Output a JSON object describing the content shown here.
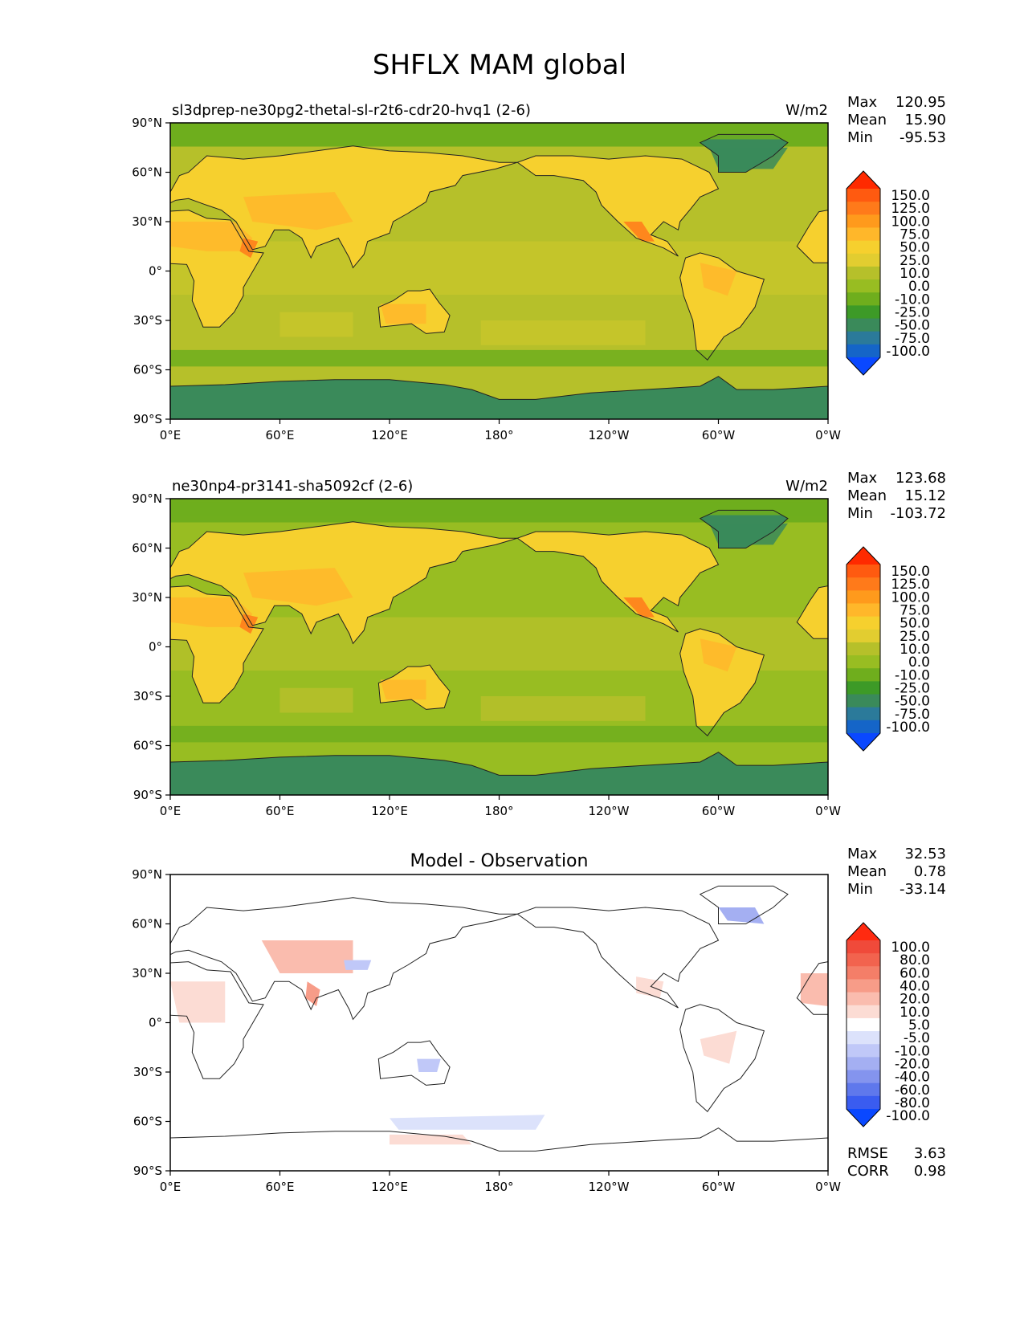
{
  "figure": {
    "title": "SHFLX MAM global"
  },
  "chart_data": [
    {
      "type": "heatmap",
      "map": "global lon-lat contour map",
      "title": "sl3dprep-ne30pg2-thetal-sl-r2t6-cdr20-hvq1 (2-6)",
      "units": "W/m2",
      "stats": {
        "max": "120.95",
        "mean": "15.90",
        "min": "-95.53"
      },
      "stat_labels": {
        "max": "Max",
        "mean": "Mean",
        "min": "Min"
      },
      "xticks": [
        "0°E",
        "60°E",
        "120°E",
        "180°",
        "120°W",
        "60°W",
        "0°W"
      ],
      "yticks": [
        "90°N",
        "60°N",
        "30°N",
        "0°",
        "30°S",
        "60°S",
        "90°S"
      ],
      "xlim": [
        0,
        360
      ],
      "ylim": [
        -90,
        90
      ],
      "colorbar": {
        "levels": [
          "150.0",
          "125.0",
          "100.0",
          "75.0",
          "50.0",
          "25.0",
          "10.0",
          "0.0",
          "-10.0",
          "-25.0",
          "-50.0",
          "-75.0",
          "-100.0"
        ],
        "colors": [
          "#ff2a00",
          "#ff5a10",
          "#ff7a1a",
          "#ff9a1c",
          "#ffb72a",
          "#f6d02e",
          "#e2cd30",
          "#b6c02a",
          "#98bd22",
          "#6fae1d",
          "#3d9a27",
          "#3a8a5a",
          "#2b7a9a",
          "#1565c8",
          "#0a48ff"
        ]
      },
      "palette": {
        "ocean": "#b6c02a",
        "ocean_mid": "#c8c52a",
        "land": "#f6d02e",
        "land_warm": "#ffb72a",
        "hot": "#ff7a1a",
        "polar": "#3a8a5a",
        "cold": "#6fae1d"
      }
    },
    {
      "type": "heatmap",
      "map": "global lon-lat contour map",
      "title": "ne30np4-pr3141-sha5092cf (2-6)",
      "units": "W/m2",
      "stats": {
        "max": "123.68",
        "mean": "15.12",
        "min": "-103.72"
      },
      "stat_labels": {
        "max": "Max",
        "mean": "Mean",
        "min": "Min"
      },
      "xticks": [
        "0°E",
        "60°E",
        "120°E",
        "180°",
        "120°W",
        "60°W",
        "0°W"
      ],
      "yticks": [
        "90°N",
        "60°N",
        "30°N",
        "0°",
        "30°S",
        "60°S",
        "90°S"
      ],
      "xlim": [
        0,
        360
      ],
      "ylim": [
        -90,
        90
      ],
      "colorbar": {
        "levels": [
          "150.0",
          "125.0",
          "100.0",
          "75.0",
          "50.0",
          "25.0",
          "10.0",
          "0.0",
          "-10.0",
          "-25.0",
          "-50.0",
          "-75.0",
          "-100.0"
        ],
        "colors": [
          "#ff2a00",
          "#ff5a10",
          "#ff7a1a",
          "#ff9a1c",
          "#ffb72a",
          "#f6d02e",
          "#e2cd30",
          "#b6c02a",
          "#98bd22",
          "#6fae1d",
          "#3d9a27",
          "#3a8a5a",
          "#2b7a9a",
          "#1565c8",
          "#0a48ff"
        ]
      },
      "palette": {
        "ocean": "#98bd22",
        "ocean_mid": "#b6c02a",
        "land": "#f6d02e",
        "land_warm": "#ffb72a",
        "hot": "#ff7a1a",
        "polar": "#3a8a5a",
        "cold": "#6fae1d"
      }
    },
    {
      "type": "heatmap",
      "map": "global lon-lat contour map (difference)",
      "title": "Model - Observation",
      "units": "",
      "stats": {
        "max": "32.53",
        "mean": "0.78",
        "min": "-33.14"
      },
      "stat_labels": {
        "max": "Max",
        "mean": "Mean",
        "min": "Min"
      },
      "metrics": {
        "rmse": "3.63",
        "corr": "0.98"
      },
      "metric_labels": {
        "rmse": "RMSE",
        "corr": "CORR"
      },
      "xticks": [
        "0°E",
        "60°E",
        "120°E",
        "180°",
        "120°W",
        "60°W",
        "0°W"
      ],
      "yticks": [
        "90°N",
        "60°N",
        "30°N",
        "0°",
        "30°S",
        "60°S",
        "90°S"
      ],
      "xlim": [
        0,
        360
      ],
      "ylim": [
        -90,
        90
      ],
      "colorbar": {
        "levels": [
          "100.0",
          "80.0",
          "60.0",
          "40.0",
          "20.0",
          "10.0",
          "5.0",
          "-5.0",
          "-10.0",
          "-20.0",
          "-40.0",
          "-60.0",
          "-80.0",
          "-100.0"
        ],
        "colors": [
          "#ff2a10",
          "#f04a3a",
          "#f2634e",
          "#f47e68",
          "#f79c88",
          "#fabcae",
          "#fcdcd4",
          "#ffffff",
          "#dce2fb",
          "#c0c8f8",
          "#a4aff2",
          "#8494ee",
          "#5f78ec",
          "#3a5cf0",
          "#0a48ff"
        ]
      }
    }
  ]
}
